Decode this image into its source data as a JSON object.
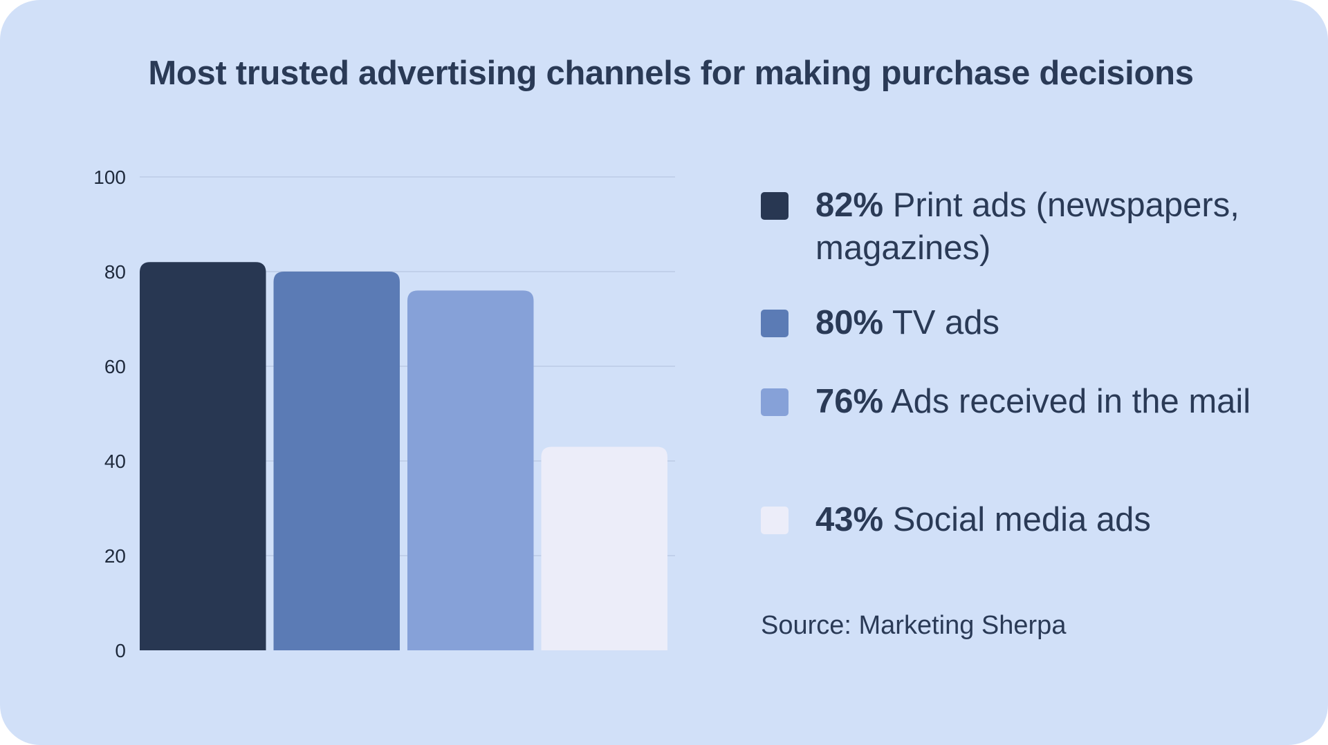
{
  "chart_data": {
    "type": "bar",
    "title": "Most trusted advertising channels for making purchase decisions",
    "categories": [
      "Print ads (newspapers, magazines)",
      "TV ads",
      "Ads received in the mail",
      "Social media ads"
    ],
    "values": [
      82,
      80,
      76,
      43
    ],
    "colors": [
      "#283752",
      "#5b7bb5",
      "#86a1d8",
      "#ecedf9"
    ],
    "ylim": [
      0,
      100
    ],
    "yticks": [
      "0",
      "20",
      "40",
      "60",
      "80",
      "100"
    ],
    "grid": true,
    "legend_position": "right",
    "legend": [
      {
        "pct": "82%",
        "label": "Print ads (newspapers, magazines)"
      },
      {
        "pct": "80%",
        "label": "TV ads"
      },
      {
        "pct": "76%",
        "label": "Ads received in the mail"
      },
      {
        "pct": "43%",
        "label": "Social media ads"
      }
    ],
    "source": "Source: Marketing Sherpa"
  }
}
